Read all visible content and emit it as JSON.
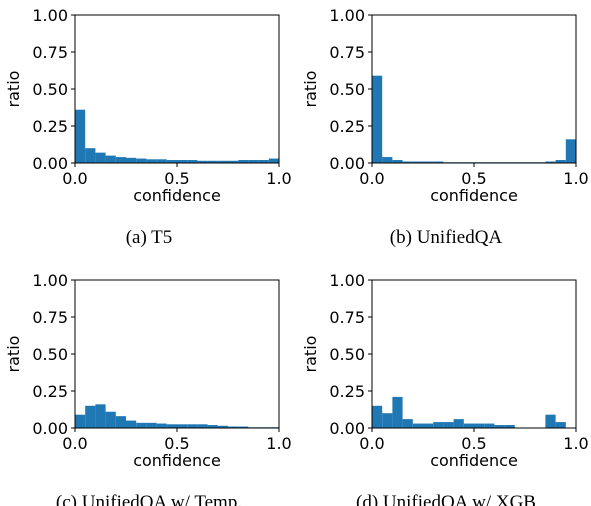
{
  "chart_data": [
    {
      "type": "bar",
      "caption": "(a)  T5",
      "xlabel": "confidence",
      "ylabel": "ratio",
      "xlim": [
        0.0,
        1.0
      ],
      "ylim": [
        0.0,
        1.0
      ],
      "xticks": [
        "0.0",
        "0.5",
        "1.0"
      ],
      "yticks": [
        "0.00",
        "0.25",
        "0.50",
        "0.75",
        "1.00"
      ],
      "color": "#1f77b4",
      "bin_width": 0.05,
      "values": [
        0.36,
        0.1,
        0.07,
        0.05,
        0.04,
        0.035,
        0.03,
        0.025,
        0.025,
        0.02,
        0.02,
        0.02,
        0.015,
        0.015,
        0.015,
        0.015,
        0.02,
        0.02,
        0.02,
        0.03
      ]
    },
    {
      "type": "bar",
      "caption": "(b)  UnifiedQA",
      "xlabel": "confidence",
      "ylabel": "ratio",
      "xlim": [
        0.0,
        1.0
      ],
      "ylim": [
        0.0,
        1.0
      ],
      "xticks": [
        "0.0",
        "0.5",
        "1.0"
      ],
      "yticks": [
        "0.00",
        "0.25",
        "0.50",
        "0.75",
        "1.00"
      ],
      "color": "#1f77b4",
      "bin_width": 0.05,
      "values": [
        0.59,
        0.04,
        0.02,
        0.01,
        0.01,
        0.01,
        0.01,
        0.005,
        0.005,
        0.005,
        0.005,
        0.005,
        0.005,
        0.005,
        0.005,
        0.005,
        0.005,
        0.01,
        0.02,
        0.16
      ]
    },
    {
      "type": "bar",
      "caption": "(c)  UnifiedQA w/ Temp.",
      "xlabel": "confidence",
      "ylabel": "ratio",
      "xlim": [
        0.0,
        1.0
      ],
      "ylim": [
        0.0,
        1.0
      ],
      "xticks": [
        "0.0",
        "0.5",
        "1.0"
      ],
      "yticks": [
        "0.00",
        "0.25",
        "0.50",
        "0.75",
        "1.00"
      ],
      "color": "#1f77b4",
      "bin_width": 0.05,
      "values": [
        0.09,
        0.15,
        0.16,
        0.11,
        0.08,
        0.05,
        0.035,
        0.035,
        0.03,
        0.025,
        0.025,
        0.025,
        0.025,
        0.02,
        0.015,
        0.01,
        0.01,
        0.005,
        0.005,
        0.005
      ]
    },
    {
      "type": "bar",
      "caption": "(d)  UnifiedQA w/ XGB",
      "xlabel": "confidence",
      "ylabel": "ratio",
      "xlim": [
        0.0,
        1.0
      ],
      "ylim": [
        0.0,
        1.0
      ],
      "xticks": [
        "0.0",
        "0.5",
        "1.0"
      ],
      "yticks": [
        "0.00",
        "0.25",
        "0.50",
        "0.75",
        "1.00"
      ],
      "color": "#1f77b4",
      "bin_width": 0.05,
      "values": [
        0.15,
        0.1,
        0.21,
        0.06,
        0.03,
        0.03,
        0.04,
        0.04,
        0.06,
        0.03,
        0.03,
        0.03,
        0.02,
        0.02,
        0.0,
        0.0,
        0.0,
        0.09,
        0.04,
        0.0
      ]
    }
  ]
}
